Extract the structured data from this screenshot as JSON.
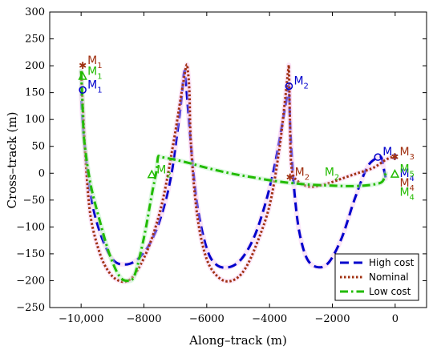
{
  "chart_data": {
    "type": "line",
    "xlabel": "Along–track (m)",
    "ylabel": "Cross–track (m)",
    "xlim": [
      -11000,
      1000
    ],
    "ylim": [
      -250,
      300
    ],
    "xticks": [
      -10000,
      -8000,
      -6000,
      -4000,
      -2000,
      0
    ],
    "xtick_labels": [
      "−10,000",
      "−8000",
      "−6000",
      "−4000",
      "−2000",
      "0"
    ],
    "yticks": [
      -250,
      -200,
      -150,
      -100,
      -50,
      0,
      50,
      100,
      150,
      200,
      250,
      300
    ],
    "ytick_labels": [
      "−250",
      "−200",
      "−150",
      "−100",
      "−50",
      "0",
      "50",
      "100",
      "150",
      "200",
      "250",
      "300"
    ],
    "grid": false,
    "legend_position": "bottom-right",
    "series": [
      {
        "name": "High cost",
        "color": "#0000cc",
        "style": "dashed",
        "x": [
          -10000,
          -9980,
          -9900,
          -9700,
          -9400,
          -9000,
          -8600,
          -8200,
          -7800,
          -7450,
          -7150,
          -6950,
          -6800,
          -6750,
          -6700,
          -6650,
          -6500,
          -6300,
          -6000,
          -5700,
          -5300,
          -4900,
          -4500,
          -4150,
          -3850,
          -3600,
          -3450,
          -3400,
          -3380,
          -3350,
          -3300,
          -3200,
          -3050,
          -2800,
          -2450,
          -2100,
          -1700,
          -1300,
          -900,
          -600,
          -450,
          -400,
          -350,
          -300
        ],
        "y": [
          160,
          120,
          60,
          -40,
          -110,
          -160,
          -170,
          -160,
          -130,
          -80,
          -10,
          70,
          140,
          175,
          190,
          160,
          50,
          -60,
          -140,
          -170,
          -175,
          -160,
          -120,
          -60,
          10,
          90,
          140,
          160,
          155,
          100,
          40,
          -40,
          -110,
          -160,
          -175,
          -165,
          -120,
          -50,
          10,
          28,
          30,
          20,
          5,
          -10
        ]
      },
      {
        "name": "Nominal",
        "color": "#a03010",
        "style": "dotted",
        "x": [
          -10000,
          -9950,
          -9850,
          -9700,
          -9400,
          -9100,
          -8800,
          -8500,
          -8200,
          -7800,
          -7400,
          -7050,
          -6800,
          -6650,
          -6600,
          -6550,
          -6500,
          -6300,
          -6000,
          -5600,
          -5200,
          -4800,
          -4400,
          -4000,
          -3700,
          -3500,
          -3400,
          -3380,
          -3350,
          -3300,
          -3100,
          -2700,
          -2200,
          -1700,
          -1200,
          -700,
          -300,
          -100
        ],
        "y": [
          190,
          130,
          20,
          -80,
          -150,
          -185,
          -200,
          -200,
          -180,
          -130,
          -50,
          60,
          150,
          200,
          190,
          150,
          50,
          -80,
          -160,
          -195,
          -200,
          -180,
          -130,
          -60,
          40,
          140,
          195,
          190,
          100,
          10,
          -15,
          -25,
          -20,
          -10,
          0,
          10,
          25,
          30
        ]
      },
      {
        "name": "Low cost",
        "color": "#22bb00",
        "style": "dashdot",
        "x": [
          -10000,
          -9950,
          -9900,
          -9700,
          -9400,
          -9100,
          -8800,
          -8550,
          -8300,
          -8000,
          -7750,
          -7600,
          -7550,
          -7450,
          -7000,
          -6500,
          -6000,
          -5500,
          -5000,
          -4500,
          -4000,
          -3500,
          -3000,
          -2500,
          -2000,
          -1500,
          -1000,
          -600,
          -400,
          -300
        ],
        "y": [
          190,
          120,
          60,
          -20,
          -90,
          -150,
          -190,
          -200,
          -190,
          -120,
          -40,
          5,
          30,
          30,
          25,
          18,
          10,
          3,
          -3,
          -8,
          -13,
          -17,
          -20,
          -22,
          -23,
          -24,
          -23,
          -20,
          -15,
          0
        ]
      }
    ],
    "annotations": [
      {
        "label": "M",
        "sub": "1",
        "x": -9950,
        "y": 200,
        "color": "#a03010",
        "marker": "star"
      },
      {
        "label": "M",
        "sub": "1",
        "x": -9950,
        "y": 180,
        "color": "#22bb00",
        "marker": "triangle"
      },
      {
        "label": "M",
        "sub": "1",
        "x": -9950,
        "y": 155,
        "color": "#0000cc",
        "marker": "circle"
      },
      {
        "label": "M",
        "sub": "2",
        "x": -3380,
        "y": 162,
        "color": "#0000cc",
        "marker": "circle"
      },
      {
        "label": "M",
        "sub": "2",
        "x": -7750,
        "y": -3,
        "color": "#22bb00",
        "marker": "triangle"
      },
      {
        "label": "M",
        "sub": "2",
        "x": -3350,
        "y": -8,
        "color": "#a03010",
        "marker": "star"
      },
      {
        "label": "M",
        "sub": "2",
        "x": -2400,
        "y": -8,
        "color": "#22bb00",
        "marker": "none"
      },
      {
        "label": "M",
        "sub": "3",
        "x": -550,
        "y": 30,
        "color": "#0000cc",
        "marker": "circle"
      },
      {
        "label": "M",
        "sub": "3",
        "x": -10,
        "y": 30,
        "color": "#a03010",
        "marker": "star"
      },
      {
        "label": "M",
        "sub": "4",
        "x": -10,
        "y": -10,
        "color": "#0000cc",
        "marker": "none"
      },
      {
        "label": "M",
        "sub": "4",
        "x": -10,
        "y": -28,
        "color": "#a03010",
        "marker": "none"
      },
      {
        "label": "M",
        "sub": "4",
        "x": -10,
        "y": -45,
        "color": "#22bb00",
        "marker": "none"
      },
      {
        "label": "M",
        "sub": "5",
        "x": -10,
        "y": -2,
        "color": "#22bb00",
        "marker": "triangle"
      }
    ]
  }
}
